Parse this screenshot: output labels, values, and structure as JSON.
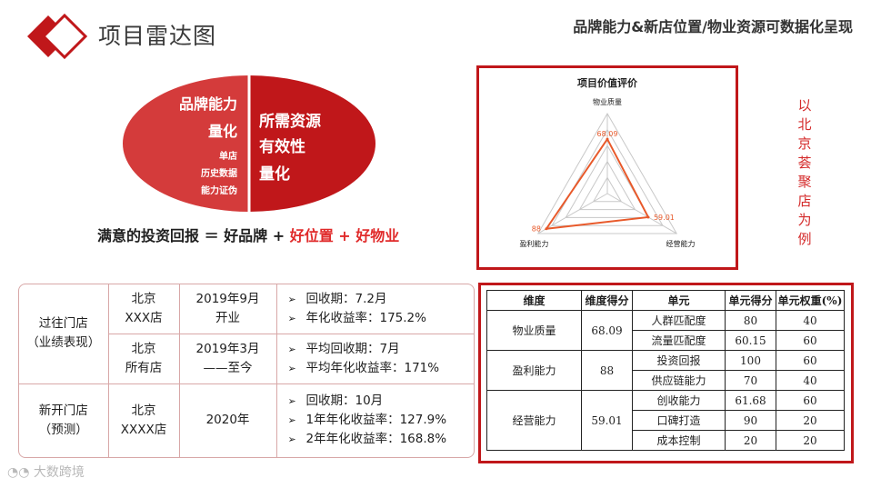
{
  "header": {
    "title": "项目雷达图",
    "subtitle": "品牌能力&新店位置/物业资源可数据化呈现"
  },
  "ellipse": {
    "left_lines": [
      "品牌能力",
      "量化"
    ],
    "left_small": [
      "单店",
      "历史数据",
      "能力证伪"
    ],
    "right_lines": [
      "所需资源",
      "有效性",
      "量化"
    ]
  },
  "formula": {
    "prefix": "满意的投资回报 ＝ 好品牌 + ",
    "highlight": "好位置 + 好物业"
  },
  "radar": {
    "title": "项目价值评价",
    "side_note": "以北京荟聚店为例"
  },
  "chart_data": {
    "type": "radar",
    "title": "项目价值评价",
    "axes": [
      "物业质量",
      "经营能力",
      "盈利能力"
    ],
    "series": [
      {
        "values": [
          68.09,
          59.01,
          88
        ]
      }
    ],
    "data_labels": [
      "68.09",
      "59.01",
      "88"
    ],
    "range": [
      0,
      100
    ]
  },
  "stores": {
    "past_label": [
      "过往门店",
      "（业绩表现）"
    ],
    "new_label": [
      "新开门店",
      "（预测）"
    ],
    "rows": [
      {
        "city": [
          "北京",
          "XXX店"
        ],
        "date": [
          "2019年9月",
          "开业"
        ],
        "bullets": [
          "回收期：7.2月",
          "年化收益率：175.2%"
        ]
      },
      {
        "city": [
          "北京",
          "所有店"
        ],
        "date": [
          "2019年3月",
          "——至今"
        ],
        "bullets": [
          "平均回收期：7月",
          "平均年化收益率：171%"
        ]
      },
      {
        "city": [
          "北京",
          "XXXX店"
        ],
        "date": [
          "2020年"
        ],
        "bullets": [
          "回收期：10月",
          "1年年化收益率：127.9%",
          "2年年化收益率：168.8%"
        ]
      }
    ]
  },
  "score_table": {
    "headers": [
      "维度",
      "维度得分",
      "单元",
      "单元得分",
      "单元权重(%)"
    ],
    "groups": [
      {
        "dim": "物业质量",
        "score": "68.09",
        "units": [
          [
            "人群匹配度",
            "80",
            "40"
          ],
          [
            "流量匹配度",
            "60.15",
            "60"
          ]
        ]
      },
      {
        "dim": "盈利能力",
        "score": "88",
        "units": [
          [
            "投资回报",
            "100",
            "60"
          ],
          [
            "供应链能力",
            "70",
            "40"
          ]
        ]
      },
      {
        "dim": "经营能力",
        "score": "59.01",
        "units": [
          [
            "创收能力",
            "61.68",
            "60"
          ],
          [
            "口碑打造",
            "90",
            "20"
          ],
          [
            "成本控制",
            "20",
            "20"
          ]
        ]
      }
    ]
  },
  "watermark": "大数跨境",
  "colors": {
    "accent": "#c0171a",
    "ellipse_left": "#d43b3b",
    "ellipse_right": "#c0171a",
    "radar_line": "#e8592a",
    "text_red": "#e02a2a"
  }
}
